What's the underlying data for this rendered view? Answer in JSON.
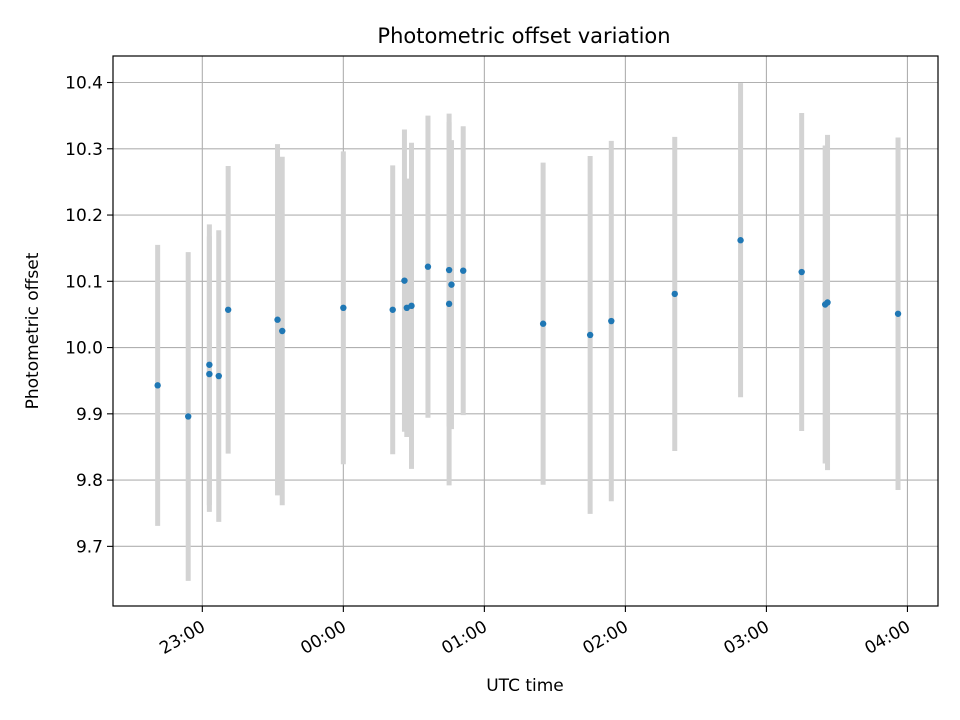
{
  "chart_data": {
    "type": "scatter",
    "title": "Photometric offset variation",
    "xlabel": "UTC time",
    "ylabel": "Photometric offset",
    "x_unit": "UTC time (HH:MM, 22:00 to 04:10 window)",
    "xlim": [
      "22:22",
      "04:13"
    ],
    "ylim": [
      9.61,
      10.44
    ],
    "grid": true,
    "x_ticks": [
      "23:00",
      "00:00",
      "01:00",
      "02:00",
      "03:00",
      "04:00"
    ],
    "y_ticks": [
      "9.7",
      "9.8",
      "9.9",
      "10.0",
      "10.1",
      "10.2",
      "10.3",
      "10.4"
    ],
    "colors": {
      "point": "#1f77b4",
      "errorbar": "#d3d3d3",
      "grid": "#b0b0b0"
    },
    "series": [
      {
        "points": [
          {
            "x": "22:41",
            "y": 9.943,
            "err": 0.212
          },
          {
            "x": "22:54",
            "y": 9.896,
            "err": 0.248
          },
          {
            "x": "23:03",
            "y": 9.974,
            "err": 0.212
          },
          {
            "x": "23:03",
            "y": 9.96,
            "err": 0.208
          },
          {
            "x": "23:07",
            "y": 9.957,
            "err": 0.22
          },
          {
            "x": "23:11",
            "y": 10.057,
            "err": 0.217
          },
          {
            "x": "23:32",
            "y": 10.042,
            "err": 0.265
          },
          {
            "x": "23:34",
            "y": 10.025,
            "err": 0.263
          },
          {
            "x": "00:00",
            "y": 10.06,
            "err": 0.236
          },
          {
            "x": "00:21",
            "y": 10.057,
            "err": 0.218
          },
          {
            "x": "00:26",
            "y": 10.101,
            "err": 0.228
          },
          {
            "x": "00:27",
            "y": 10.06,
            "err": 0.195
          },
          {
            "x": "00:29",
            "y": 10.063,
            "err": 0.246
          },
          {
            "x": "00:36",
            "y": 10.122,
            "err": 0.228
          },
          {
            "x": "00:45",
            "y": 10.066,
            "err": 0.274
          },
          {
            "x": "00:45",
            "y": 10.117,
            "err": 0.236
          },
          {
            "x": "00:46",
            "y": 10.095,
            "err": 0.218
          },
          {
            "x": "00:51",
            "y": 10.116,
            "err": 0.218
          },
          {
            "x": "01:25",
            "y": 10.036,
            "err": 0.243
          },
          {
            "x": "01:45",
            "y": 10.019,
            "err": 0.27
          },
          {
            "x": "01:54",
            "y": 10.04,
            "err": 0.272
          },
          {
            "x": "02:21",
            "y": 10.081,
            "err": 0.237
          },
          {
            "x": "02:49",
            "y": 10.162,
            "err": 0.237
          },
          {
            "x": "03:15",
            "y": 10.114,
            "err": 0.24
          },
          {
            "x": "03:25",
            "y": 10.065,
            "err": 0.24
          },
          {
            "x": "03:26",
            "y": 10.068,
            "err": 0.253
          },
          {
            "x": "03:56",
            "y": 10.051,
            "err": 0.266
          }
        ]
      }
    ]
  }
}
